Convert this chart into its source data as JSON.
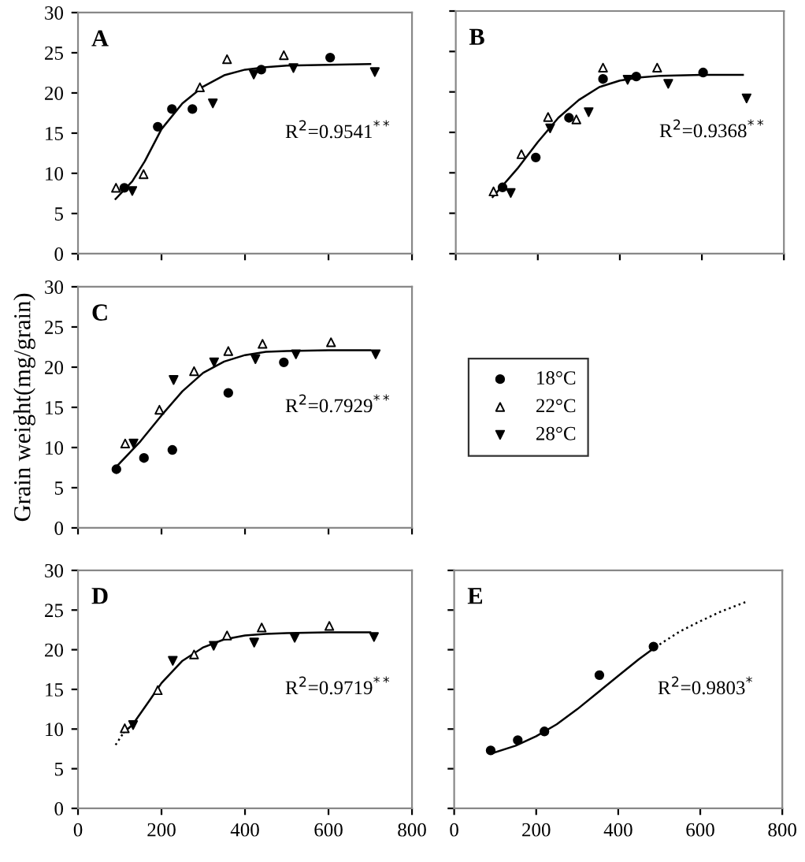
{
  "chart_data": [
    {
      "type": "scatter",
      "title": "A",
      "xlim": [
        0,
        800
      ],
      "ylim": [
        0,
        30
      ],
      "xticks": [
        0,
        200,
        400,
        600,
        800
      ],
      "yticks": [
        0,
        5,
        10,
        15,
        20,
        25,
        30
      ],
      "tick_labels": "y",
      "grid": false,
      "legend": false,
      "annotations": [
        "R$^{2}$=0.9541$^{**}$"
      ],
      "series": [
        {
          "color": "#000000",
          "marker": "circle",
          "x": [
            111,
            191,
            225,
            274,
            439,
            604
          ],
          "values": [
            8.2,
            15.8,
            18.0,
            18.0,
            22.9,
            24.4
          ]
        },
        {
          "color": "#ffffff",
          "marker": "triangle",
          "x": [
            91,
            157,
            292,
            357,
            493
          ],
          "values": [
            8.2,
            9.9,
            20.7,
            24.2,
            24.7
          ]
        },
        {
          "color": "#000000",
          "marker": "triangle_down",
          "x": [
            130,
            323,
            421,
            516,
            711
          ],
          "values": [
            7.8,
            18.7,
            22.3,
            23.1,
            22.6
          ]
        },
        {
          "type": "line",
          "color": "#000000",
          "line_style": "solid",
          "x": [
            90,
            130,
            160,
            200,
            250,
            300,
            350,
            400,
            450,
            500,
            600,
            700
          ],
          "values": [
            6.8,
            9,
            11.5,
            15.5,
            18.7,
            20.8,
            22.2,
            22.9,
            23.2,
            23.4,
            23.5,
            23.6
          ]
        }
      ]
    },
    {
      "type": "scatter",
      "title": "B",
      "xlim": [
        0,
        800
      ],
      "ylim": [
        0,
        30
      ],
      "xticks": [
        0,
        200,
        400,
        600,
        800
      ],
      "yticks": [
        0,
        5,
        10,
        15,
        20,
        25,
        30
      ],
      "tick_labels": false,
      "grid": false,
      "legend": false,
      "annotations": [
        "R$^{2}$=0.9368$^{**}$"
      ],
      "series": [
        {
          "color": "#000000",
          "marker": "circle",
          "x": [
            114,
            195,
            276,
            359,
            440,
            603
          ],
          "values": [
            8.2,
            11.9,
            16.8,
            21.6,
            21.9,
            22.4
          ]
        },
        {
          "color": "#ffffff",
          "marker": "triangle",
          "x": [
            92,
            160,
            225,
            294,
            359,
            491
          ],
          "values": [
            7.7,
            12.3,
            16.9,
            16.6,
            23.0,
            23.0
          ]
        },
        {
          "color": "#000000",
          "marker": "triangle_down",
          "x": [
            134,
            230,
            324,
            419,
            518,
            709
          ],
          "values": [
            7.5,
            15.5,
            17.5,
            21.5,
            21.0,
            19.2
          ]
        },
        {
          "type": "line",
          "color": "#000000",
          "line_style": "solid",
          "x": [
            90,
            150,
            200,
            250,
            300,
            350,
            400,
            450,
            500,
            600,
            700
          ],
          "values": [
            7,
            10.5,
            13.8,
            16.8,
            19,
            20.6,
            21.4,
            21.8,
            22,
            22.1,
            22.1
          ]
        }
      ]
    },
    {
      "type": "scatter",
      "title": "C",
      "ylabel": "Grain weight(mg/grain)",
      "xlim": [
        0,
        800
      ],
      "ylim": [
        0,
        30
      ],
      "xticks": [
        0,
        200,
        400,
        600,
        800
      ],
      "yticks": [
        0,
        5,
        10,
        15,
        20,
        25,
        30
      ],
      "tick_labels": "y",
      "grid": false,
      "legend": "right",
      "annotations": [
        "R$^{2}$=0.7929$^{**}$"
      ],
      "series": [
        {
          "name": "18°C",
          "color": "#000000",
          "marker": "circle",
          "x": [
            92,
            158,
            226,
            360,
            493
          ],
          "values": [
            7.3,
            8.7,
            9.7,
            16.8,
            20.6
          ]
        },
        {
          "name": "22°C",
          "color": "#ffffff",
          "marker": "triangle",
          "x": [
            113,
            195,
            278,
            360,
            442,
            606
          ],
          "values": [
            10.5,
            14.7,
            19.5,
            22.0,
            22.9,
            23.1
          ]
        },
        {
          "name": "28°C",
          "color": "#000000",
          "marker": "triangle_down",
          "x": [
            133,
            229,
            326,
            425,
            522,
            713
          ],
          "values": [
            10.5,
            18.4,
            20.6,
            21.0,
            21.6,
            21.6
          ]
        },
        {
          "type": "line",
          "color": "#000000",
          "line_style": "solid",
          "x": [
            90,
            150,
            200,
            250,
            300,
            350,
            400,
            450,
            500,
            600,
            700
          ],
          "values": [
            7.5,
            10.8,
            14,
            17,
            19.3,
            20.7,
            21.5,
            21.9,
            22,
            22.1,
            22.1
          ]
        }
      ]
    },
    {
      "type": "scatter",
      "title": "D",
      "xlim": [
        0,
        800
      ],
      "ylim": [
        0,
        30
      ],
      "xticks": [
        0,
        200,
        400,
        600,
        800
      ],
      "yticks": [
        0,
        5,
        10,
        15,
        20,
        25,
        30
      ],
      "grid": false,
      "legend": false,
      "annotations": [
        "R$^{2}$=0.9719$^{**}$"
      ],
      "series": [
        {
          "color": "#ffffff",
          "marker": "triangle",
          "x": [
            112,
            191,
            278,
            357,
            440,
            602
          ],
          "values": [
            10.1,
            14.9,
            19.4,
            21.8,
            22.8,
            23.0
          ]
        },
        {
          "color": "#000000",
          "marker": "triangle_down",
          "x": [
            132,
            227,
            325,
            422,
            519,
            709
          ],
          "values": [
            10.5,
            18.6,
            20.5,
            20.9,
            21.5,
            21.6
          ]
        },
        {
          "type": "line",
          "color": "#000000",
          "line_style": "dotted",
          "x": [
            90,
            110
          ],
          "values": [
            8,
            9.6
          ]
        },
        {
          "type": "line",
          "color": "#000000",
          "line_style": "solid",
          "x": [
            110,
            130,
            170,
            200,
            250,
            300,
            350,
            400,
            450,
            500,
            600,
            700
          ],
          "values": [
            9.6,
            10.5,
            13.5,
            15.8,
            18.6,
            20.3,
            21.3,
            21.8,
            22,
            22.1,
            22.2,
            22.2
          ]
        }
      ]
    },
    {
      "type": "scatter",
      "title": "E",
      "xlim": [
        0,
        800
      ],
      "ylim": [
        0,
        30
      ],
      "xticks": [
        0,
        200,
        400,
        600,
        800
      ],
      "yticks": [
        0,
        5,
        10,
        15,
        20,
        25,
        30
      ],
      "tick_labels": "x",
      "grid": false,
      "legend": false,
      "annotations": [
        "R$^{2}$=0.9803$^{*}$"
      ],
      "series": [
        {
          "color": "#000000",
          "marker": "circle",
          "x": [
            89,
            155,
            220,
            354,
            486
          ],
          "values": [
            7.3,
            8.6,
            9.7,
            16.8,
            20.4
          ]
        },
        {
          "type": "line",
          "color": "#000000",
          "line_style": "solid",
          "x": [
            90,
            150,
            200,
            250,
            300,
            350,
            400,
            450,
            490
          ],
          "values": [
            6.9,
            7.9,
            9.1,
            10.6,
            12.5,
            14.6,
            16.7,
            18.8,
            20.3
          ]
        },
        {
          "type": "line",
          "color": "#000000",
          "line_style": "dotted",
          "x": [
            490,
            550,
            600,
            650,
            710
          ],
          "values": [
            20.3,
            22.3,
            23.6,
            24.8,
            26.0
          ]
        }
      ]
    }
  ]
}
